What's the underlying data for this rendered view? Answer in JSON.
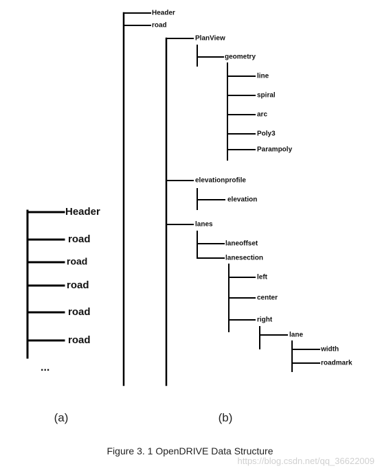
{
  "diagram_a": {
    "root_items": [
      "Header",
      "road",
      "road",
      "road",
      "road",
      "road"
    ],
    "ellipsis": "..."
  },
  "diagram_b": {
    "top_items": [
      "Header",
      "road"
    ],
    "road_children": [
      "PlanView",
      "elevationprofile",
      "lanes"
    ],
    "planview_children": [
      "geometry"
    ],
    "geometry_children": [
      "line",
      "spiral",
      "arc",
      "Poly3",
      "Parampoly"
    ],
    "elevationprofile_children": [
      "elevation"
    ],
    "lanes_children": [
      "laneoffset",
      "lanesection"
    ],
    "lanesection_children": [
      "left",
      "center",
      "right"
    ],
    "right_children": [
      "lane"
    ],
    "lane_children": [
      "width",
      "roadmark"
    ]
  },
  "panel_labels": {
    "a": "(a)",
    "b": "(b)"
  },
  "caption": "Figure 3. 1 OpenDRIVE Data Structure",
  "watermark": "https://blog.csdn.net/qq_36622009",
  "colors": {
    "line": "#000000",
    "text": "#111111",
    "watermark": "#d0d0d0"
  }
}
